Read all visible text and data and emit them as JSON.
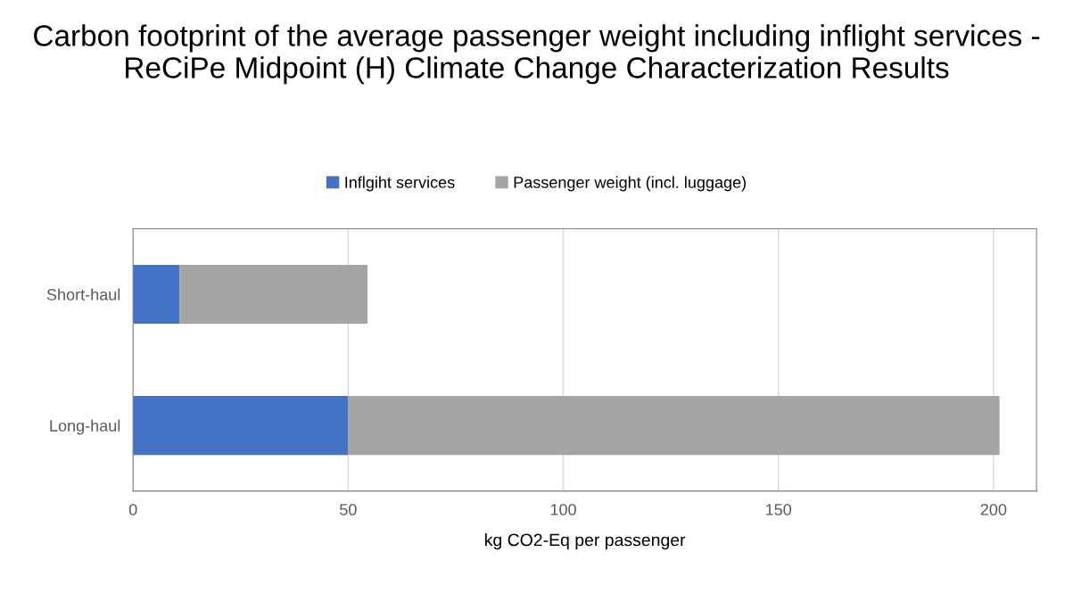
{
  "chart_data": {
    "type": "bar",
    "orientation": "horizontal",
    "stacked": true,
    "title": "Carbon footprint of the average passenger weight including inflight services - ReCiPe Midpoint (H) Climate Change Characterization Results",
    "xlabel": "kg CO2-Eq per passenger",
    "categories": [
      "Short-haul",
      "Long-haul"
    ],
    "series": [
      {
        "name": "Inflgiht services",
        "color": "#4472c4",
        "values": [
          10.8,
          50
        ]
      },
      {
        "name": "Passenger weight (incl. luggage)",
        "color": "#a5a5a5",
        "values": [
          43.7,
          151.4
        ]
      }
    ],
    "xlim": [
      0,
      210
    ],
    "xticks": [
      0,
      50,
      100,
      150,
      200
    ],
    "grid": "x",
    "legend": "top"
  }
}
